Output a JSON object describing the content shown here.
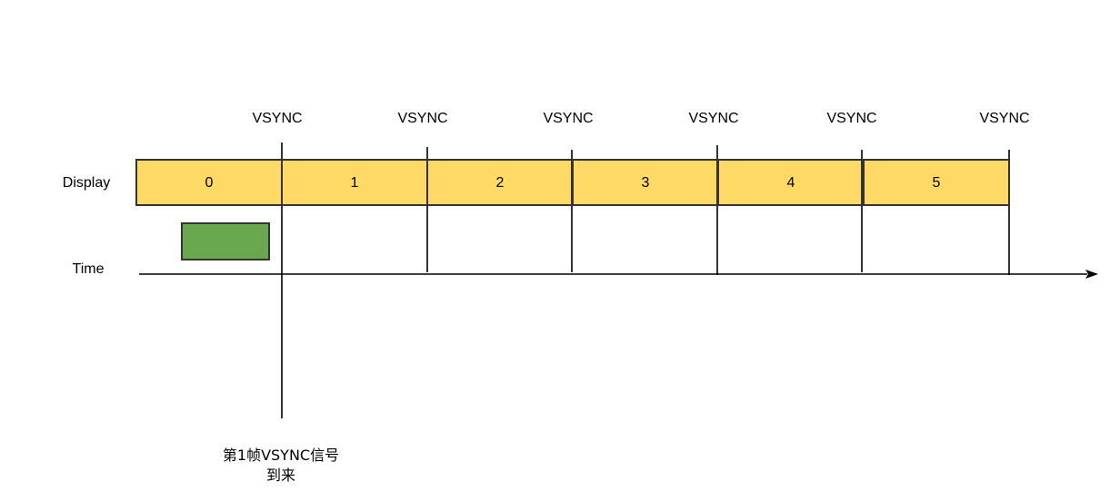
{
  "row_labels": {
    "display": "Display",
    "time": "Time"
  },
  "vsync": {
    "label": "VSYNC",
    "count": 6
  },
  "frames": [
    "0",
    "1",
    "2",
    "3",
    "4",
    "5"
  ],
  "annotation": {
    "line1": "第1帧VSYNC信号",
    "line2": "到来"
  },
  "colors": {
    "frame_fill": "#FFD966",
    "task_fill": "#6AA84F",
    "line": "#333333",
    "background": "#FFFFFF"
  }
}
